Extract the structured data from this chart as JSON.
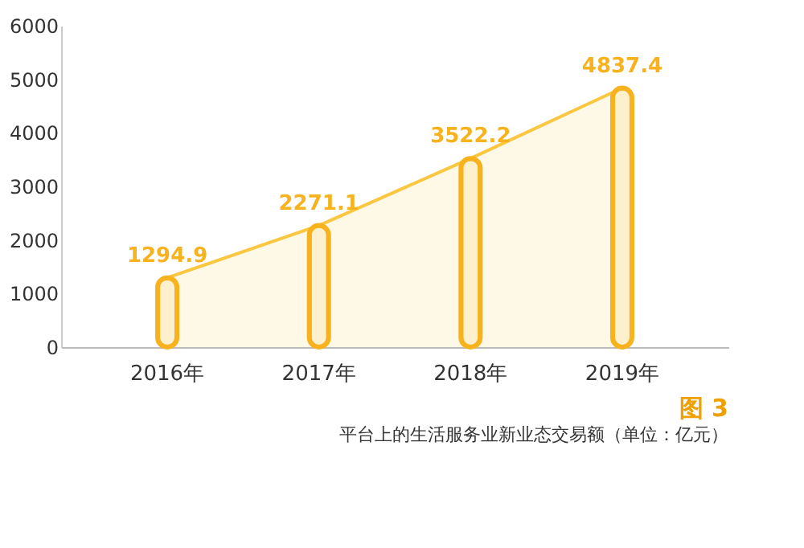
{
  "chart_data": {
    "type": "bar",
    "title": "平台上的生活服务业新业态交易额（单位：亿元）",
    "annotations": [
      "图 3"
    ],
    "categories": [
      "2016年",
      "2017年",
      "2018年",
      "2019年"
    ],
    "series": [
      {
        "type": "area",
        "color": "#fbc640",
        "values": [
          1294.9,
          2271.1,
          3522.2,
          4837.4
        ]
      },
      {
        "color": "#f7b21e",
        "values": [
          1294.9,
          2271.1,
          3522.2,
          4837.4
        ],
        "value_labels": [
          "1294.9",
          "2271.1",
          "3522.2",
          "4837.4"
        ]
      }
    ],
    "ylim": [
      0,
      6000
    ],
    "yticks": [
      0,
      1000,
      2000,
      3000,
      4000,
      5000,
      6000
    ],
    "grid": false
  }
}
